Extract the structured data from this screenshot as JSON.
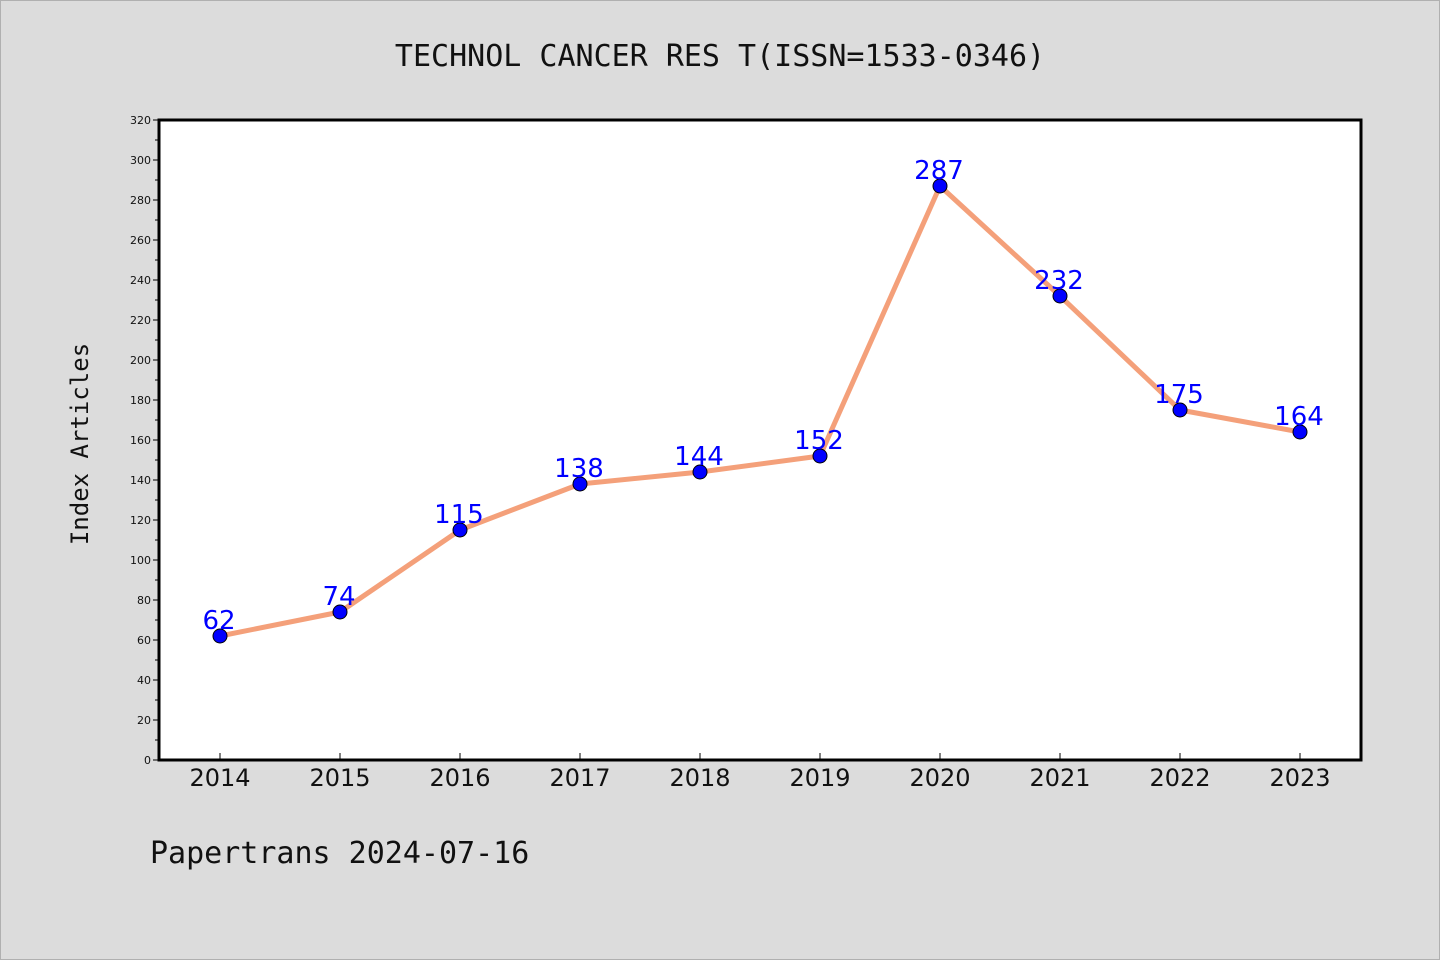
{
  "chart_data": {
    "type": "line",
    "title": "TECHNOL CANCER RES T(ISSN=1533-0346)",
    "xlabel": "",
    "ylabel": "Index Articles",
    "categories": [
      "2014",
      "2015",
      "2016",
      "2017",
      "2018",
      "2019",
      "2020",
      "2021",
      "2022",
      "2023"
    ],
    "series": [
      {
        "values": [
          62,
          74,
          115,
          138,
          144,
          152,
          287,
          232,
          175,
          164
        ]
      }
    ],
    "ylim": [
      0,
      320
    ],
    "yticks": [
      "0",
      "20",
      "40",
      "60",
      "80",
      "100",
      "120",
      "140",
      "160",
      "180",
      "200",
      "220",
      "240",
      "260",
      "280",
      "300",
      "320"
    ],
    "data_labels": true,
    "grid": false,
    "legend": "none",
    "colors": {
      "line": "#f4a07a",
      "marker": "#0000ff",
      "label": "#0000ff",
      "background": "#dcdcdc",
      "plot_area": "#ffffff"
    }
  },
  "footer": "Papertrans 2024-07-16"
}
